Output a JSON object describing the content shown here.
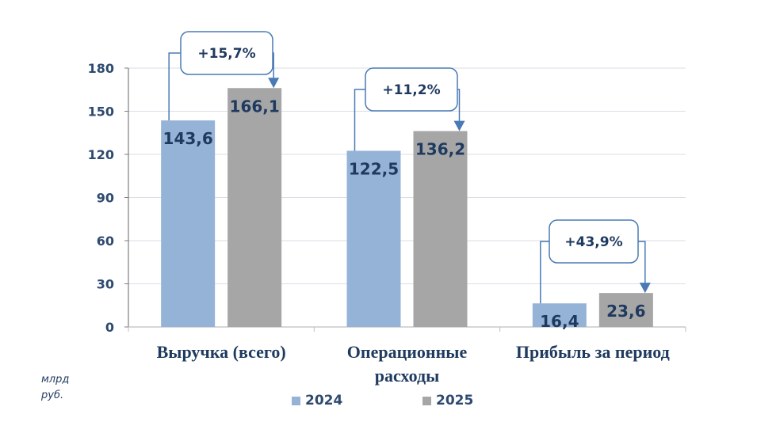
{
  "chart_data": {
    "type": "bar",
    "title": "",
    "xlabel": "",
    "ylabel": "млрд руб.",
    "ylim": [
      0,
      180
    ],
    "yticks": [
      0,
      30,
      60,
      90,
      120,
      150,
      180
    ],
    "grid": true,
    "legend_position": "bottom",
    "categories": [
      "Выручка (всего)",
      "Операционные расходы",
      "Прибыль за период"
    ],
    "series": [
      {
        "name": "2024",
        "color": "#95b3d7",
        "values": [
          143.6,
          122.5,
          16.4
        ],
        "labels": [
          "143,6",
          "122,5",
          "16,4"
        ]
      },
      {
        "name": "2025",
        "color": "#a6a6a6",
        "values": [
          166.1,
          136.2,
          23.6
        ],
        "labels": [
          "166,1",
          "136,2",
          "23,6"
        ]
      }
    ],
    "annotations": [
      {
        "category": "Выручка (всего)",
        "text": "+15,7%"
      },
      {
        "category": "Операционные расходы",
        "text": "+11,2%"
      },
      {
        "category": "Прибыль за период",
        "text": "+43,9%"
      }
    ]
  },
  "axis": {
    "yticks": [
      "0",
      "30",
      "60",
      "90",
      "120",
      "150",
      "180"
    ]
  },
  "categories": {
    "c0": [
      "Выручка (всего)"
    ],
    "c1": [
      "Операционные",
      "расходы"
    ],
    "c2": [
      "Прибыль за период"
    ]
  },
  "unit": {
    "line1": "млрд",
    "line2": "руб."
  },
  "legend": {
    "s2024": "2024",
    "s2025": "2025"
  },
  "colors": {
    "s2024": "#95b3d7",
    "s2025": "#a6a6a6",
    "text": "#1f3a5f",
    "connector": "#4a7ab5",
    "grid": "#d9dee5"
  }
}
